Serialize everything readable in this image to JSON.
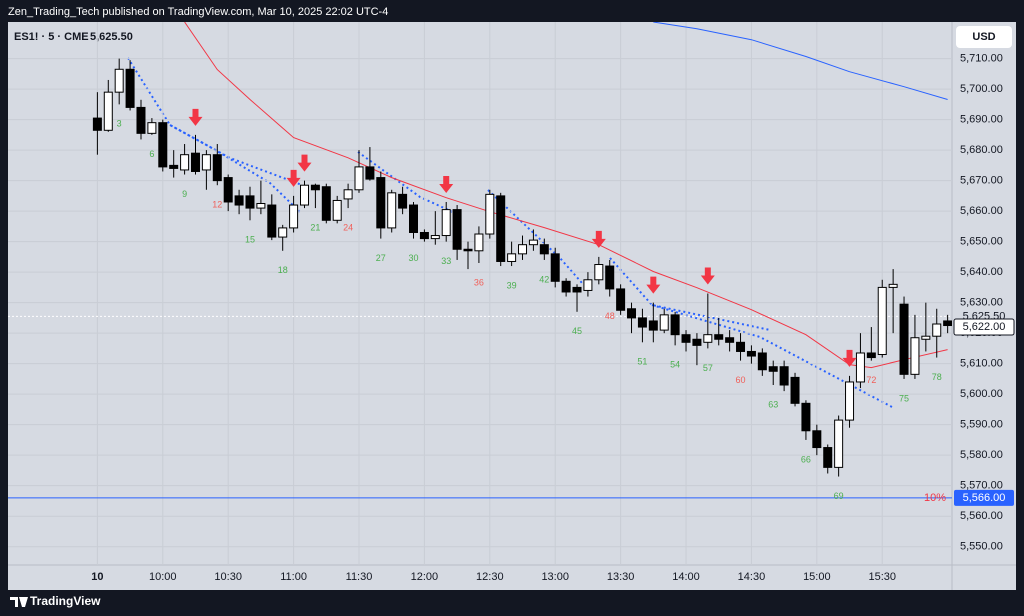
{
  "chart_data": {
    "type": "candlestick",
    "attribution": "Zen_Trading_Tech published on TradingView.com, Mar 10, 2025 22:02 UTC-4",
    "symbol": "ES1! · 5 · CME",
    "header_price": "5,625.50",
    "currency": "USD",
    "brand": "TradingView",
    "xlim": [
      -7.2,
      79.4
    ],
    "ylim": [
      5544,
      5722
    ],
    "xticks": [
      {
        "value": 1,
        "label": "10"
      },
      {
        "value": 7,
        "label": "10:00"
      },
      {
        "value": 13,
        "label": "10:30"
      },
      {
        "value": 19,
        "label": "11:00"
      },
      {
        "value": 25,
        "label": "11:30"
      },
      {
        "value": 31,
        "label": "12:00"
      },
      {
        "value": 37,
        "label": "12:30"
      },
      {
        "value": 43,
        "label": "13:00"
      },
      {
        "value": 49,
        "label": "13:30"
      },
      {
        "value": 55,
        "label": "14:00"
      },
      {
        "value": 61,
        "label": "14:30"
      },
      {
        "value": 67,
        "label": "15:00"
      },
      {
        "value": 73,
        "label": "15:30"
      }
    ],
    "yticks": [
      {
        "value": 5550,
        "label": "5,550.00"
      },
      {
        "value": 5560,
        "label": "5,560.00"
      },
      {
        "value": 5570,
        "label": "5,570.00"
      },
      {
        "value": 5580,
        "label": "5,580.00"
      },
      {
        "value": 5590,
        "label": "5,590.00"
      },
      {
        "value": 5600,
        "label": "5,600.00"
      },
      {
        "value": 5610,
        "label": "5,610.00"
      },
      {
        "value": 5620,
        "label": "5,620.00"
      },
      {
        "value": 5630,
        "label": "5,630.00"
      },
      {
        "value": 5640,
        "label": "5,640.00"
      },
      {
        "value": 5650,
        "label": "5,650.00"
      },
      {
        "value": 5660,
        "label": "5,660.00"
      },
      {
        "value": 5670,
        "label": "5,670.00"
      },
      {
        "value": 5680,
        "label": "5,680.00"
      },
      {
        "value": 5690,
        "label": "5,690.00"
      },
      {
        "value": 5700,
        "label": "5,700.00"
      },
      {
        "value": 5710,
        "label": "5,710.00"
      }
    ],
    "open": [
      5690.5,
      5686.5,
      5699,
      5706.5,
      5694,
      5685.5,
      5689,
      5675,
      5673.5,
      5679,
      5673.5,
      5678.5,
      5671,
      5665,
      5665,
      5661,
      5662,
      5651.5,
      5654.5,
      5662,
      5668.5,
      5668,
      5657,
      5664,
      5667,
      5674.5,
      5671,
      5654.5,
      5665.5,
      5662,
      5653,
      5651,
      5652,
      5660.5,
      5647.5,
      5647,
      5652.5,
      5665,
      5643.5,
      5646,
      5649,
      5649,
      5646,
      5637,
      5635,
      5634,
      5637.5,
      5642,
      5634.5,
      5628,
      5625,
      5624,
      5621,
      5626,
      5619.5,
      5618,
      5617,
      5619.5,
      5618.5,
      5617,
      5614,
      5613.5,
      5609,
      5609,
      5605.5,
      5597,
      5588,
      5582.5,
      5576,
      5591.5,
      5604,
      5613.5,
      5613,
      5635,
      5629.5,
      5606.5,
      5618,
      5619,
      5624
    ],
    "high": [
      5699,
      5703,
      5710,
      5709.5,
      5696.5,
      5690.5,
      5690,
      5680,
      5682,
      5685,
      5680,
      5682,
      5672,
      5667,
      5668,
      5670,
      5665.5,
      5655.5,
      5665,
      5670,
      5669,
      5669,
      5665,
      5669,
      5680,
      5681,
      5673,
      5667,
      5668,
      5663,
      5654,
      5660,
      5663,
      5662,
      5650,
      5655,
      5667,
      5666,
      5650,
      5652,
      5654,
      5651,
      5648,
      5638,
      5636,
      5640,
      5645,
      5644,
      5636,
      5630,
      5628,
      5630,
      5628,
      5627,
      5621,
      5620,
      5633,
      5625,
      5621,
      5620,
      5616,
      5615,
      5611,
      5611,
      5607,
      5598,
      5590,
      5583.5,
      5593,
      5606,
      5620,
      5622,
      5637.5,
      5641,
      5632,
      5626,
      5630,
      5628,
      5626
    ],
    "low": [
      5678.5,
      5686,
      5695,
      5693,
      5683.5,
      5685,
      5673,
      5671,
      5672,
      5672,
      5667,
      5668.5,
      5660,
      5659,
      5657,
      5659,
      5650.5,
      5647,
      5653,
      5661,
      5661,
      5656,
      5656,
      5661,
      5666,
      5670,
      5651,
      5653,
      5659,
      5651,
      5650,
      5649,
      5650,
      5644,
      5641,
      5643,
      5651,
      5642,
      5642,
      5644,
      5647,
      5644,
      5635,
      5632,
      5627,
      5632,
      5636,
      5632,
      5626,
      5620,
      5617,
      5617,
      5620,
      5616,
      5614,
      5609.5,
      5615,
      5616,
      5614,
      5611,
      5610,
      5606,
      5603,
      5601,
      5596,
      5585,
      5580,
      5574,
      5573,
      5589,
      5602,
      5611,
      5612,
      5620,
      5605,
      5605,
      5614,
      5612,
      5620
    ],
    "close": [
      5686.5,
      5699,
      5706.5,
      5694,
      5685.5,
      5689,
      5674.5,
      5674,
      5678.5,
      5673,
      5678.5,
      5670,
      5663,
      5662,
      5661,
      5662.5,
      5651.5,
      5654.5,
      5662,
      5668.5,
      5667,
      5657,
      5663.5,
      5667,
      5674.5,
      5670.5,
      5654.5,
      5666,
      5661,
      5653,
      5651,
      5652,
      5660.5,
      5647.5,
      5647,
      5652.5,
      5665.5,
      5643.5,
      5646,
      5649,
      5650.5,
      5646,
      5637,
      5633.5,
      5633.5,
      5637.5,
      5642.5,
      5634.5,
      5627.5,
      5625,
      5622,
      5621,
      5626,
      5619.5,
      5617,
      5616,
      5619.5,
      5618,
      5617,
      5614,
      5612.5,
      5608,
      5607.5,
      5603,
      5597,
      5588,
      5582.5,
      5576,
      5591.5,
      5604,
      5613.5,
      5612,
      5635,
      5636,
      5606.5,
      5618.5,
      5619,
      5623,
      5622.5
    ],
    "series": [
      {
        "name": "EMA",
        "color": "#f23645",
        "x": [
          9,
          12,
          15,
          19,
          24,
          28,
          33,
          37,
          42,
          47,
          52,
          56,
          61,
          66,
          70,
          72,
          75,
          79
        ],
        "values": [
          5722,
          5706.4,
          5696.6,
          5684.1,
          5677.5,
          5671,
          5664.4,
          5659.8,
          5654.6,
          5649,
          5640.2,
          5634.9,
          5627.7,
          5619.5,
          5609.7,
          5608.7,
          5611.3,
          5614.6
        ]
      },
      {
        "name": "SMA",
        "color": "#2962ff",
        "x": [
          52,
          56,
          61,
          66,
          70,
          75,
          79
        ],
        "values": [
          5722,
          5719.8,
          5716.2,
          5710.7,
          5705.7,
          5700.8,
          5696.6
        ]
      }
    ],
    "bar_labels": {
      "x": [
        3,
        6,
        9,
        12,
        15,
        18,
        21,
        24,
        27,
        30,
        33,
        36,
        39,
        42,
        45,
        48,
        51,
        54,
        57,
        60,
        63,
        66,
        69,
        72,
        75,
        78
      ],
      "labels": [
        "3",
        "6",
        "9",
        "12",
        "15",
        "18",
        "21",
        "24",
        "27",
        "30",
        "33",
        "36",
        "39",
        "42",
        "45",
        "48",
        "51",
        "54",
        "57",
        "60",
        "63",
        "66",
        "69",
        "72",
        "75",
        "78"
      ],
      "colors": [
        "#4caf50",
        "#4caf50",
        "#4caf50",
        "#f0605a",
        "#4caf50",
        "#4caf50",
        "#4caf50",
        "#f0605a",
        "#4caf50",
        "#4caf50",
        "#4caf50",
        "#f0605a",
        "#4caf50",
        "#4caf50",
        "#4caf50",
        "#f0605a",
        "#4caf50",
        "#4caf50",
        "#4caf50",
        "#f0605a",
        "#4caf50",
        "#4caf50",
        "#4caf50",
        "#f0605a",
        "#4caf50",
        "#4caf50"
      ]
    },
    "sell_signals": [
      10,
      19,
      20,
      33,
      47,
      52,
      57,
      70
    ],
    "level": {
      "value": 5566,
      "label": "10%",
      "price_label": "5,566.00"
    },
    "last_price": {
      "value": 5625.5,
      "label": "5,625.50"
    },
    "close_marker": {
      "value": 5622,
      "label": "5,622.00"
    }
  }
}
